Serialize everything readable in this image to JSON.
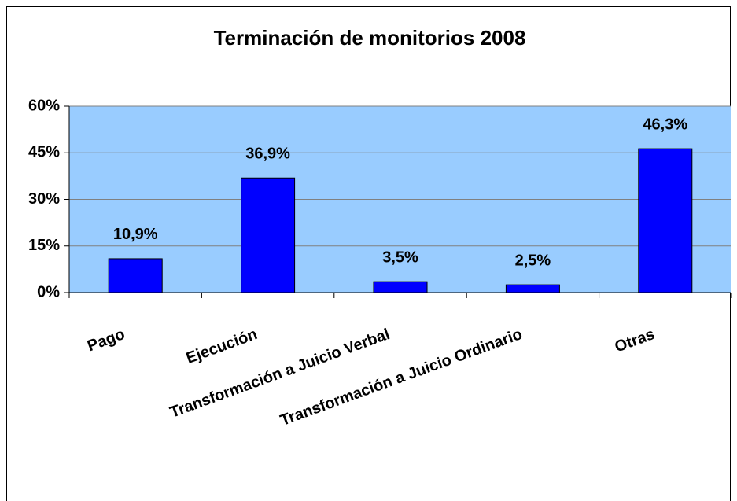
{
  "chart_data": {
    "type": "bar",
    "title": "Terminación de monitorios 2008",
    "categories": [
      "Pago",
      "Ejecución",
      "Transformación a Juicio Verbal",
      "Transformación a Juicio Ordinario",
      "Otras"
    ],
    "values": [
      10.9,
      36.9,
      3.5,
      2.5,
      46.3
    ],
    "value_labels": [
      "10,9%",
      "36,9%",
      "3,5%",
      "2,5%",
      "46,3%"
    ],
    "color": "#0000ff",
    "ylim": [
      0,
      60
    ],
    "yticks": [
      {
        "value": 0,
        "label": "0%"
      },
      {
        "value": 15,
        "label": "15%"
      },
      {
        "value": 30,
        "label": "30%"
      },
      {
        "value": 45,
        "label": "45%"
      },
      {
        "value": 60,
        "label": "60%"
      }
    ],
    "grid": true
  }
}
